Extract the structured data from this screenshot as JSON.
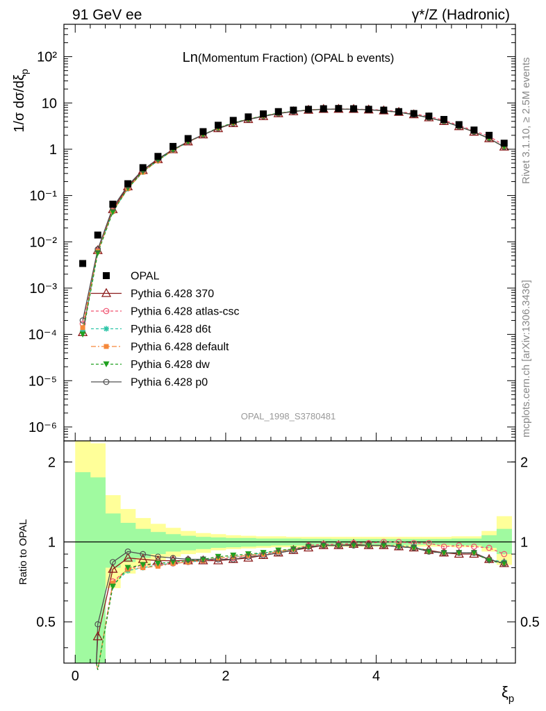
{
  "header": {
    "left": "91 GeV ee",
    "right": "γ*/Z (Hadronic)"
  },
  "title": {
    "main": "Ln",
    "rest": "(Momentum Fraction) (OPAL b events)"
  },
  "side_texts": {
    "rivet": "Rivet 3.1.10, ≥ 2.5M events",
    "mcplots": "mcplots.cern.ch [arXiv:1306.3436]"
  },
  "analysis_id": "OPAL_1998_S3780481",
  "y_label_main": "1/σ dσ/dξ",
  "y_label_main_sub": "p",
  "y_label_ratio": "Ratio to OPAL",
  "x_label": "ξ",
  "x_label_sub": "p",
  "colors": {
    "data": "#000000",
    "p370": "#8b1a1a",
    "atlas": "#f0506e",
    "d6t": "#2ec5a8",
    "default": "#f5883a",
    "dw": "#20a020",
    "p0": "#505050",
    "band_inner": "#a0faa0",
    "band_outer": "#ffff99"
  },
  "chart_data": [
    {
      "type": "scatter",
      "scale": "log",
      "xlim": [
        -0.15,
        5.85
      ],
      "ylim": [
        5e-07,
        500
      ],
      "yticks": [
        "10⁻⁶",
        "10⁻⁵",
        "10⁻⁴",
        "10⁻³",
        "10⁻²",
        "10⁻¹",
        "1",
        "10",
        "10²"
      ],
      "x": [
        0.1,
        0.3,
        0.5,
        0.7,
        0.9,
        1.1,
        1.3,
        1.5,
        1.7,
        1.9,
        2.1,
        2.3,
        2.5,
        2.7,
        2.9,
        3.1,
        3.3,
        3.5,
        3.7,
        3.9,
        4.1,
        4.3,
        4.5,
        4.7,
        4.9,
        5.1,
        5.3,
        5.5,
        5.7
      ],
      "series": [
        {
          "name": "OPAL",
          "key": "data",
          "values": [
            0.0034,
            0.014,
            0.065,
            0.18,
            0.4,
            0.7,
            1.15,
            1.7,
            2.4,
            3.3,
            4.2,
            5.0,
            5.8,
            6.5,
            7.0,
            7.3,
            7.5,
            7.6,
            7.5,
            7.3,
            7.0,
            6.5,
            5.9,
            5.2,
            4.4,
            3.4,
            2.6,
            2.0,
            1.35
          ]
        },
        {
          "name": "Pythia 6.428 370",
          "key": "p370",
          "values": [
            0.00011,
            0.0065,
            0.05,
            0.155,
            0.35,
            0.6,
            0.98,
            1.45,
            2.05,
            2.8,
            3.6,
            4.4,
            5.1,
            5.9,
            6.5,
            7.0,
            7.3,
            7.35,
            7.3,
            7.1,
            6.8,
            6.3,
            5.6,
            4.8,
            4.0,
            3.1,
            2.35,
            1.7,
            1.12
          ]
        },
        {
          "name": "Pythia 6.428 atlas-csc",
          "key": "atlas",
          "values": [
            0.00017,
            0.0063,
            0.046,
            0.143,
            0.33,
            0.57,
            0.95,
            1.42,
            2.03,
            2.84,
            3.66,
            4.46,
            5.22,
            5.98,
            6.6,
            7.08,
            7.35,
            7.45,
            7.37,
            7.23,
            7.0,
            6.55,
            5.84,
            5.15,
            4.22,
            3.3,
            2.5,
            1.9,
            1.22
          ]
        },
        {
          "name": "Pythia 6.428 d6t",
          "key": "d6t",
          "values": [
            0.00012,
            0.0062,
            0.045,
            0.141,
            0.32,
            0.57,
            0.95,
            1.43,
            2.04,
            2.86,
            3.7,
            4.45,
            5.25,
            6.0,
            6.6,
            7.04,
            7.3,
            7.4,
            7.3,
            7.15,
            6.8,
            6.3,
            5.65,
            4.8,
            4.0,
            3.1,
            2.38,
            1.72,
            1.13
          ]
        },
        {
          "name": "Pythia 6.428 default",
          "key": "default",
          "values": [
            0.00014,
            0.0062,
            0.046,
            0.142,
            0.32,
            0.57,
            0.95,
            1.43,
            2.04,
            2.86,
            3.68,
            4.45,
            5.22,
            5.98,
            6.58,
            7.03,
            7.3,
            7.38,
            7.28,
            7.12,
            6.78,
            6.3,
            5.62,
            4.8,
            4.02,
            3.1,
            2.38,
            1.72,
            1.12
          ]
        },
        {
          "name": "Pythia 6.428 dw",
          "key": "dw",
          "values": [
            0.0001,
            0.0057,
            0.044,
            0.144,
            0.33,
            0.58,
            0.96,
            1.45,
            2.07,
            2.9,
            3.72,
            4.5,
            5.25,
            6.02,
            6.6,
            7.04,
            7.3,
            7.38,
            7.28,
            7.12,
            6.78,
            6.28,
            5.6,
            4.78,
            4.0,
            3.1,
            2.37,
            1.7,
            1.12
          ]
        },
        {
          "name": "Pythia 6.428 p0",
          "key": "p0",
          "values": [
            0.0002,
            0.0069,
            0.055,
            0.165,
            0.36,
            0.62,
            0.99,
            1.46,
            2.06,
            2.82,
            3.62,
            4.4,
            5.15,
            5.9,
            6.55,
            7.0,
            7.3,
            7.35,
            7.3,
            7.1,
            6.8,
            6.3,
            5.6,
            4.8,
            4.0,
            3.1,
            2.38,
            1.72,
            1.12
          ]
        }
      ],
      "legend": "left"
    },
    {
      "type": "line",
      "scale": "log",
      "xlim": [
        -0.15,
        5.85
      ],
      "ylim": [
        0.35,
        2.4
      ],
      "xticks": [
        0,
        2,
        4
      ],
      "yticks": [
        0.5,
        1,
        2
      ],
      "band_edges": [
        0.0,
        0.2,
        0.4,
        0.6,
        0.8,
        1.0,
        1.2,
        1.4,
        1.6,
        1.8,
        2.0,
        2.2,
        2.4,
        2.6,
        2.8,
        3.0,
        3.2,
        3.4,
        3.6,
        3.8,
        4.0,
        4.2,
        4.4,
        4.6,
        4.8,
        5.0,
        5.2,
        5.4,
        5.6,
        5.8
      ],
      "band_inner_low": [
        0.3,
        0.3,
        0.8,
        0.84,
        0.87,
        0.9,
        0.92,
        0.93,
        0.94,
        0.95,
        0.955,
        0.96,
        0.965,
        0.97,
        0.97,
        0.97,
        0.975,
        0.975,
        0.975,
        0.975,
        0.975,
        0.975,
        0.975,
        0.975,
        0.975,
        0.97,
        0.97,
        0.95,
        0.9
      ],
      "band_inner_high": [
        1.83,
        1.75,
        1.28,
        1.18,
        1.12,
        1.09,
        1.07,
        1.055,
        1.045,
        1.04,
        1.035,
        1.035,
        1.03,
        1.03,
        1.03,
        1.028,
        1.028,
        1.026,
        1.026,
        1.026,
        1.026,
        1.026,
        1.026,
        1.026,
        1.026,
        1.03,
        1.03,
        1.06,
        1.12
      ],
      "band_outer_low": [
        0.3,
        0.3,
        0.67,
        0.76,
        0.81,
        0.85,
        0.88,
        0.9,
        0.91,
        0.93,
        0.94,
        0.945,
        0.95,
        0.955,
        0.955,
        0.955,
        0.96,
        0.96,
        0.96,
        0.96,
        0.96,
        0.96,
        0.96,
        0.96,
        0.96,
        0.955,
        0.955,
        0.92,
        0.82
      ],
      "band_outer_high": [
        2.4,
        2.35,
        1.5,
        1.33,
        1.23,
        1.17,
        1.13,
        1.1,
        1.08,
        1.07,
        1.06,
        1.055,
        1.05,
        1.05,
        1.045,
        1.045,
        1.045,
        1.045,
        1.045,
        1.045,
        1.045,
        1.045,
        1.045,
        1.045,
        1.045,
        1.05,
        1.05,
        1.1,
        1.25
      ],
      "x": [
        0.1,
        0.3,
        0.5,
        0.7,
        0.9,
        1.1,
        1.3,
        1.5,
        1.7,
        1.9,
        2.1,
        2.3,
        2.5,
        2.7,
        2.9,
        3.1,
        3.3,
        3.5,
        3.7,
        3.9,
        4.1,
        4.3,
        4.5,
        4.7,
        4.9,
        5.1,
        5.3,
        5.5,
        5.7
      ],
      "series": [
        {
          "name": "Pythia 6.428 370",
          "key": "p370",
          "values": [
            null,
            0.44,
            0.79,
            0.87,
            0.86,
            0.85,
            0.85,
            0.85,
            0.85,
            0.85,
            0.86,
            0.87,
            0.89,
            0.91,
            0.93,
            0.95,
            0.97,
            0.97,
            0.98,
            0.97,
            0.97,
            0.96,
            0.95,
            0.93,
            0.91,
            0.9,
            0.9,
            0.86,
            0.83
          ]
        },
        {
          "name": "Pythia 6.428 atlas-csc",
          "key": "atlas",
          "values": [
            null,
            0.33,
            0.71,
            0.79,
            0.82,
            0.82,
            0.83,
            0.84,
            0.85,
            0.86,
            0.87,
            0.89,
            0.9,
            0.92,
            0.94,
            0.97,
            0.98,
            0.98,
            0.99,
            0.99,
            1.0,
            1.0,
            0.99,
            0.99,
            0.96,
            0.97,
            0.96,
            0.95,
            0.9
          ]
        },
        {
          "name": "Pythia 6.428 d6t",
          "key": "d6t",
          "values": [
            null,
            0.33,
            0.69,
            0.78,
            0.8,
            0.82,
            0.83,
            0.84,
            0.85,
            0.87,
            0.88,
            0.89,
            0.91,
            0.92,
            0.94,
            0.96,
            0.97,
            0.97,
            0.97,
            0.97,
            0.97,
            0.97,
            0.96,
            0.92,
            0.91,
            0.91,
            0.91,
            0.86,
            0.84
          ]
        },
        {
          "name": "Pythia 6.428 default",
          "key": "default",
          "values": [
            null,
            0.33,
            0.7,
            0.79,
            0.8,
            0.81,
            0.83,
            0.84,
            0.85,
            0.87,
            0.88,
            0.89,
            0.9,
            0.92,
            0.94,
            0.96,
            0.97,
            0.97,
            0.97,
            0.97,
            0.97,
            0.97,
            0.95,
            0.92,
            0.91,
            0.91,
            0.91,
            0.86,
            0.83
          ]
        },
        {
          "name": "Pythia 6.428 dw",
          "key": "dw",
          "values": [
            null,
            0.33,
            0.68,
            0.8,
            0.82,
            0.83,
            0.84,
            0.85,
            0.86,
            0.88,
            0.89,
            0.9,
            0.91,
            0.93,
            0.94,
            0.96,
            0.97,
            0.97,
            0.97,
            0.97,
            0.97,
            0.96,
            0.95,
            0.92,
            0.91,
            0.91,
            0.91,
            0.85,
            0.83
          ]
        },
        {
          "name": "Pythia 6.428 p0",
          "key": "p0",
          "values": [
            null,
            0.49,
            0.84,
            0.92,
            0.9,
            0.88,
            0.87,
            0.86,
            0.86,
            0.86,
            0.86,
            0.88,
            0.89,
            0.91,
            0.93,
            0.96,
            0.97,
            0.97,
            0.97,
            0.97,
            0.97,
            0.96,
            0.95,
            0.92,
            0.91,
            0.91,
            0.91,
            0.86,
            0.83
          ]
        }
      ]
    }
  ]
}
